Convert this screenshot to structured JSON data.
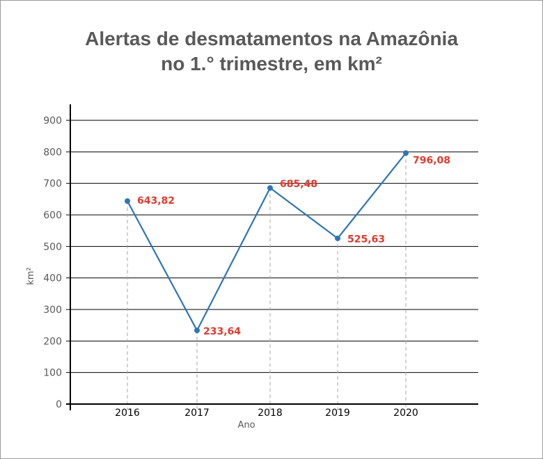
{
  "title": {
    "line1": "Alertas de desmatamentos na Amazônia",
    "line2": "no 1.° trimestre, em km²"
  },
  "colors": {
    "line": "#2e75b6",
    "label": "#e03a2e",
    "grid": "#000000",
    "guide": "#a6a6a6"
  },
  "chart_data": {
    "type": "line",
    "x": [
      "2016",
      "2017",
      "2018",
      "2019",
      "2020"
    ],
    "series": [
      {
        "values": [
          643.82,
          233.64,
          685.48,
          525.63,
          796.08
        ]
      }
    ],
    "data_labels": [
      "643,82",
      "233,64",
      "685,48",
      "525,63",
      "796,08"
    ],
    "xlabel": "Ano",
    "ylabel": "km²",
    "ylim": [
      0,
      900
    ],
    "yticks": [
      0,
      100,
      200,
      300,
      400,
      500,
      600,
      700,
      800,
      900
    ],
    "grid": true,
    "legend": "none"
  }
}
